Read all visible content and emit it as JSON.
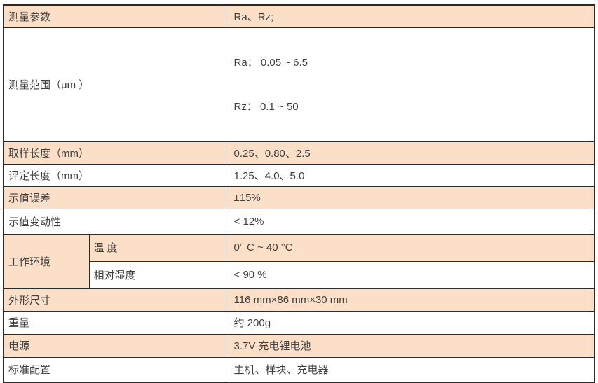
{
  "table": {
    "colors": {
      "row_accent": "#fbe0c7",
      "row_plain": "#ffffff",
      "border": "#2b2b2b",
      "text": "#404040"
    },
    "rows": [
      {
        "label": "测量参数",
        "value": "Ra、Rz;"
      },
      {
        "label": "测量范围（μm ）",
        "value_lines": [
          "Ra： 0.05 ~ 6.5",
          "Rz： 0.1 ~ 50"
        ]
      },
      {
        "label": "取样长度（mm）",
        "value": "0.25、0.80、2.5"
      },
      {
        "label": "评定长度（mm）",
        "value": "1.25、4.0、5.0"
      },
      {
        "label": "示值误差",
        "value": "±15%"
      },
      {
        "label": "示值变动性",
        "value": "< 12%"
      },
      {
        "group_label": "工作环境",
        "sub_rows": [
          {
            "label": "温 度",
            "value": "0° C ~ 40 °C"
          },
          {
            "label": "相对湿度",
            "value": "< 90 %"
          }
        ]
      },
      {
        "label": "外形尺寸",
        "value": "116 mm×86 mm×30 mm"
      },
      {
        "label": "重量",
        "value": "约 200g"
      },
      {
        "label": "电源",
        "value": "3.7V 充电锂电池"
      },
      {
        "label": "标准配置",
        "value": "主机、样块、充电器"
      }
    ]
  }
}
